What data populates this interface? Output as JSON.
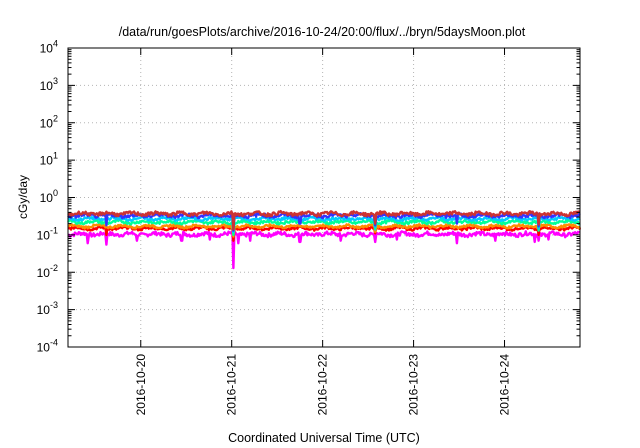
{
  "chart_data": {
    "type": "line",
    "title": "/data/run/goesPlots/archive/2016-10-24/20:00/flux/../bryn/5daysMoon.plot",
    "xlabel": "Coordinated Universal Time (UTC)",
    "ylabel": "cGy/day",
    "y_scale": "log",
    "ylim": [
      0.0001,
      10000
    ],
    "y_ticks": [
      {
        "value": 0.0001,
        "mantissa": "10",
        "exp": "-4"
      },
      {
        "value": 0.001,
        "mantissa": "10",
        "exp": "-3"
      },
      {
        "value": 0.01,
        "mantissa": "10",
        "exp": "-2"
      },
      {
        "value": 0.1,
        "mantissa": "10",
        "exp": "-1"
      },
      {
        "value": 1,
        "mantissa": "10",
        "exp": "0"
      },
      {
        "value": 10,
        "mantissa": "10",
        "exp": "1"
      },
      {
        "value": 100,
        "mantissa": "10",
        "exp": "2"
      },
      {
        "value": 1000,
        "mantissa": "10",
        "exp": "3"
      },
      {
        "value": 10000,
        "mantissa": "10",
        "exp": "4"
      }
    ],
    "x_ticks": [
      {
        "day": 1,
        "label": "2016-10-20"
      },
      {
        "day": 2,
        "label": "2016-10-21"
      },
      {
        "day": 3,
        "label": "2016-10-22"
      },
      {
        "day": 4,
        "label": "2016-10-23"
      },
      {
        "day": 5,
        "label": "2016-10-24"
      }
    ],
    "xlim_days": [
      0.2,
      5.83
    ],
    "grid": true,
    "legend": "none",
    "series": [
      {
        "color": "#ff00ff",
        "level": 0.105,
        "jitter": 0.12,
        "dips": [
          [
            0.42,
            0.06
          ],
          [
            0.62,
            0.055
          ],
          [
            0.96,
            0.07
          ],
          [
            1.45,
            0.07
          ],
          [
            1.76,
            0.075
          ],
          [
            2.02,
            0.013
          ],
          [
            2.07,
            0.06
          ],
          [
            2.2,
            0.07
          ],
          [
            2.75,
            0.065
          ],
          [
            3.2,
            0.07
          ],
          [
            3.58,
            0.065
          ],
          [
            3.82,
            0.075
          ],
          [
            4.48,
            0.06
          ],
          [
            4.9,
            0.07
          ],
          [
            5.33,
            0.065
          ],
          [
            5.38,
            0.07
          ],
          [
            5.48,
            0.075
          ]
        ]
      },
      {
        "color": "#ff0000",
        "level": 0.15,
        "jitter": 0.08,
        "dips": [
          [
            0.62,
            0.1
          ],
          [
            2.02,
            0.07
          ],
          [
            3.58,
            0.11
          ],
          [
            5.38,
            0.1
          ]
        ]
      },
      {
        "color": "#ff8c00",
        "level": 0.17,
        "jitter": 0.07,
        "dips": [
          [
            2.02,
            0.09
          ],
          [
            3.58,
            0.12
          ]
        ]
      },
      {
        "color": "#00ff99",
        "level": 0.22,
        "jitter": 0.08,
        "dips": [
          [
            2.02,
            0.1
          ],
          [
            3.58,
            0.14
          ],
          [
            5.38,
            0.13
          ]
        ]
      },
      {
        "color": "#00ccff",
        "level": 0.27,
        "jitter": 0.08,
        "dips": [
          [
            2.02,
            0.12
          ],
          [
            3.58,
            0.16
          ],
          [
            5.38,
            0.15
          ]
        ]
      },
      {
        "color": "#3333ff",
        "level": 0.33,
        "jitter": 0.1,
        "dips": [
          [
            0.62,
            0.18
          ],
          [
            2.02,
            0.13
          ],
          [
            2.75,
            0.2
          ],
          [
            3.58,
            0.18
          ],
          [
            4.48,
            0.2
          ],
          [
            5.38,
            0.17
          ]
        ]
      },
      {
        "color": "#cc3333",
        "level": 0.37,
        "jitter": 0.1,
        "dips": [
          [
            2.02,
            0.14
          ],
          [
            3.58,
            0.2
          ],
          [
            5.38,
            0.19
          ]
        ]
      }
    ]
  }
}
